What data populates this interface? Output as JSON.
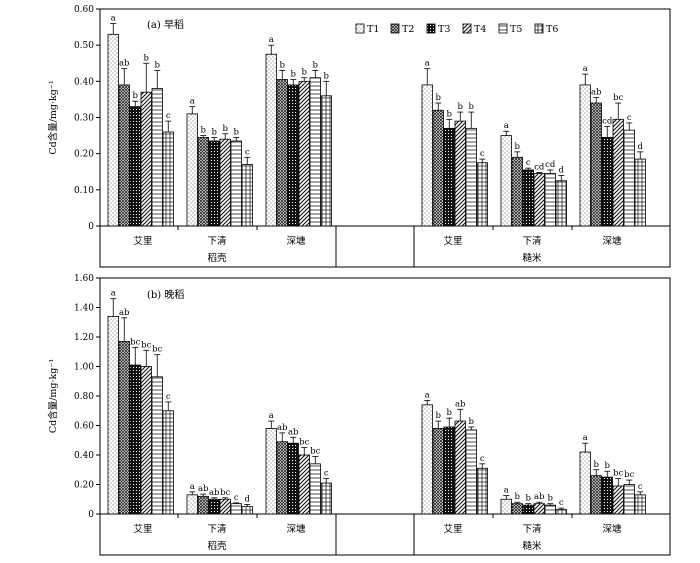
{
  "chart_data": [
    {
      "type": "bar",
      "title": "(a) 早稻",
      "ylabel": "Cd含量/mg·kg⁻¹",
      "ylim": [
        0,
        0.6
      ],
      "yticks": [
        "0",
        "0.10",
        "0.20",
        "0.30",
        "0.40",
        "0.50",
        "0.60"
      ],
      "legend": {
        "position": "top-right",
        "items": [
          "T1",
          "T2",
          "T3",
          "T4",
          "T5",
          "T6"
        ]
      },
      "sections": [
        "稻壳",
        "糙米"
      ],
      "sites": [
        "艾里",
        "下清",
        "深塘"
      ],
      "series": [
        {
          "section": "稻壳",
          "groups": [
            {
              "site": "艾里",
              "values": [
                0.53,
                0.39,
                0.33,
                0.37,
                0.38,
                0.26
              ],
              "errors": [
                0.03,
                0.045,
                0.015,
                0.08,
                0.05,
                0.03
              ],
              "letters": [
                "a",
                "ab",
                "b",
                "b",
                "b",
                "c"
              ]
            },
            {
              "site": "下清",
              "values": [
                0.31,
                0.245,
                0.235,
                0.24,
                0.235,
                0.17
              ],
              "errors": [
                0.02,
                0.005,
                0.01,
                0.015,
                0.01,
                0.02
              ],
              "letters": [
                "a",
                "b",
                "b",
                "b",
                "b",
                "c"
              ]
            },
            {
              "site": "深塘",
              "values": [
                0.475,
                0.405,
                0.39,
                0.4,
                0.41,
                0.36
              ],
              "errors": [
                0.025,
                0.025,
                0.015,
                0.01,
                0.02,
                0.04
              ],
              "letters": [
                "a",
                "b",
                "b",
                "b",
                "b",
                "b"
              ]
            }
          ]
        },
        {
          "section": "糙米",
          "groups": [
            {
              "site": "艾里",
              "values": [
                0.39,
                0.32,
                0.27,
                0.29,
                0.27,
                0.175
              ],
              "errors": [
                0.045,
                0.02,
                0.025,
                0.025,
                0.045,
                0.01
              ],
              "letters": [
                "a",
                "b",
                "b",
                "b",
                "b",
                "c"
              ]
            },
            {
              "site": "下清",
              "values": [
                0.25,
                0.19,
                0.155,
                0.145,
                0.145,
                0.125
              ],
              "errors": [
                0.012,
                0.015,
                0.005,
                0.003,
                0.01,
                0.015
              ],
              "letters": [
                "a",
                "b",
                "c",
                "cd",
                "cd",
                "d"
              ]
            },
            {
              "site": "深塘",
              "values": [
                0.39,
                0.34,
                0.245,
                0.295,
                0.265,
                0.185
              ],
              "errors": [
                0.03,
                0.015,
                0.03,
                0.045,
                0.02,
                0.02
              ],
              "letters": [
                "a",
                "ab",
                "cd",
                "bc",
                "c",
                "d"
              ]
            }
          ]
        }
      ]
    },
    {
      "type": "bar",
      "title": "(b) 晚稻",
      "ylabel": "Cd含量/mg·kg⁻¹",
      "ylim": [
        0,
        1.6
      ],
      "yticks": [
        "0",
        "0.20",
        "0.40",
        "0.60",
        "0.80",
        "1.00",
        "1.20",
        "1.40",
        "1.60"
      ],
      "sections": [
        "稻壳",
        "糙米"
      ],
      "sites": [
        "艾里",
        "下清",
        "深塘"
      ],
      "series": [
        {
          "section": "稻壳",
          "groups": [
            {
              "site": "艾里",
              "values": [
                1.34,
                1.17,
                1.01,
                1.0,
                0.93,
                0.7
              ],
              "errors": [
                0.12,
                0.16,
                0.12,
                0.11,
                0.15,
                0.06
              ],
              "letters": [
                "a",
                "ab",
                "bc",
                "bc",
                "bc",
                "c"
              ]
            },
            {
              "site": "下清",
              "values": [
                0.13,
                0.12,
                0.1,
                0.1,
                0.07,
                0.05
              ],
              "errors": [
                0.02,
                0.015,
                0.01,
                0.01,
                0.005,
                0.015
              ],
              "letters": [
                "a",
                "ab",
                "ab",
                "bc",
                "c",
                "d"
              ]
            },
            {
              "site": "深塘",
              "values": [
                0.58,
                0.49,
                0.48,
                0.4,
                0.34,
                0.21
              ],
              "errors": [
                0.05,
                0.06,
                0.04,
                0.05,
                0.05,
                0.03
              ],
              "letters": [
                "a",
                "ab",
                "ab",
                "bc",
                "bc",
                "c"
              ]
            }
          ]
        },
        {
          "section": "糙米",
          "groups": [
            {
              "site": "艾里",
              "values": [
                0.74,
                0.58,
                0.59,
                0.63,
                0.57,
                0.31
              ],
              "errors": [
                0.03,
                0.05,
                0.06,
                0.08,
                0.02,
                0.03
              ],
              "letters": [
                "a",
                "b",
                "b",
                "ab",
                "b",
                "c"
              ]
            },
            {
              "site": "下清",
              "values": [
                0.1,
                0.07,
                0.06,
                0.07,
                0.06,
                0.03
              ],
              "errors": [
                0.025,
                0.01,
                0.01,
                0.01,
                0.01,
                0.01
              ],
              "letters": [
                "a",
                "b",
                "b",
                "ab",
                "b",
                "c"
              ]
            },
            {
              "site": "深塘",
              "values": [
                0.42,
                0.26,
                0.25,
                0.19,
                0.2,
                0.13
              ],
              "errors": [
                0.06,
                0.04,
                0.04,
                0.05,
                0.03,
                0.02
              ],
              "letters": [
                "a",
                "b",
                "b",
                "bc",
                "bc",
                "c"
              ]
            }
          ]
        }
      ]
    }
  ]
}
